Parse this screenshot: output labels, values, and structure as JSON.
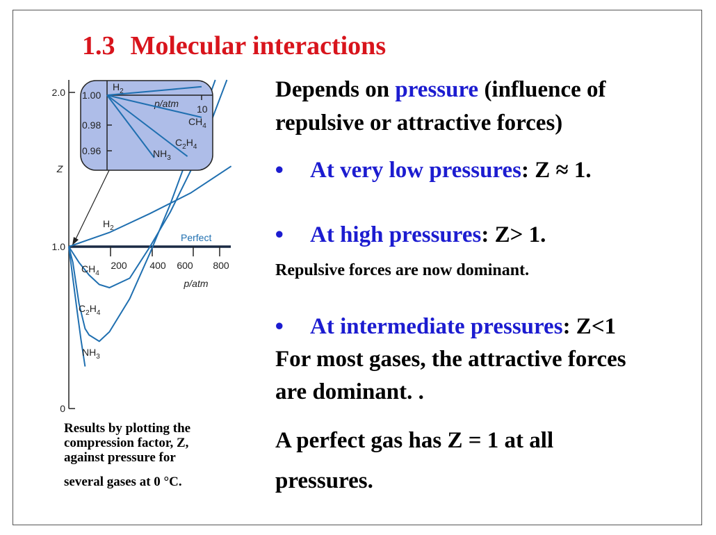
{
  "slide": {
    "title_number": "1.3",
    "title_text": "Molecular interactions"
  },
  "text": {
    "intro_a": "Depends on ",
    "intro_highlight": "pressure",
    "intro_b": " (influence of",
    "intro_line2": "repulsive or attractive forces)",
    "bullet_glyph": "•",
    "b1_highlight": "At very low pressures",
    "b1_rest": ": Z ≈ 1.",
    "b2_highlight": "At high pressures",
    "b2_rest": ": Z> 1.",
    "repulsive": "Repulsive forces are now dominant.",
    "b3_highlight": "At intermediate pressures",
    "b3_rest": ": Z<1",
    "most_line1": "For most gases, the attractive forces",
    "most_line2": "are dominant. .",
    "perfect_line1": "A perfect gas has Z = 1 at all",
    "perfect_line2": "pressures."
  },
  "caption": {
    "line1": "Results by plotting the",
    "line2": "compression factor, Z,",
    "line3": "against pressure for",
    "line4": "several gases at 0 °C."
  },
  "chart_data": [
    {
      "type": "line",
      "xlabel": "p/atm",
      "ylabel": "Z",
      "xlim": [
        0,
        830
      ],
      "ylim": [
        0,
        2.0
      ],
      "x_ticks": [
        200,
        400,
        600,
        800
      ],
      "x_tick_labels": [
        "200",
        "400",
        "600",
        "800"
      ],
      "y_ticks": [
        0,
        1.0,
        2.0
      ],
      "y_tick_labels": [
        "0",
        "1.0",
        "2.0"
      ],
      "grid": false,
      "series": [
        {
          "name": "H2",
          "label_main": "H",
          "label_sub": "2",
          "x": [
            0,
            200,
            400,
            600,
            800
          ],
          "y": [
            1.0,
            1.09,
            1.21,
            1.34,
            1.51
          ]
        },
        {
          "name": "CH4",
          "label_main": "CH",
          "label_sub": "4",
          "x": [
            0,
            50,
            100,
            150,
            200,
            300,
            400,
            500,
            600,
            700,
            800
          ],
          "y": [
            1.0,
            0.9,
            0.82,
            0.76,
            0.74,
            0.8,
            1.0,
            1.22,
            1.48,
            1.79,
            2.13
          ]
        },
        {
          "name": "C2H4",
          "label_main": "C",
          "label_sub": "2",
          "label_main2": "H",
          "label_sub2": "4",
          "x": [
            0,
            20,
            50,
            80,
            100,
            150,
            200,
            300,
            400,
            500,
            600,
            700,
            790
          ],
          "y": [
            1.0,
            0.9,
            0.64,
            0.48,
            0.44,
            0.4,
            0.46,
            0.67,
            0.96,
            1.27,
            1.62,
            1.98,
            2.3
          ]
        },
        {
          "name": "NH3",
          "label_main": "NH",
          "label_sub": "3",
          "x": [
            0,
            20,
            40,
            60,
            80
          ],
          "y": [
            1.0,
            0.8,
            0.6,
            0.41,
            0.24
          ]
        },
        {
          "name": "Perfect",
          "label_main": "Perfect",
          "label_sub": "",
          "x": [
            0,
            830
          ],
          "y": [
            1.0,
            1.0
          ]
        }
      ]
    },
    {
      "type": "line",
      "inset": true,
      "xlabel": "p/atm",
      "xlim": [
        0,
        11
      ],
      "ylim": [
        0.95,
        1.005
      ],
      "x_ticks": [
        10
      ],
      "x_tick_labels": [
        "10"
      ],
      "y_ticks": [
        0.96,
        0.98,
        1.0
      ],
      "y_tick_labels": [
        "0.96",
        "0.98",
        "1.00"
      ],
      "series": [
        {
          "name": "H2",
          "label_main": "H",
          "label_sub": "2",
          "x": [
            0,
            10
          ],
          "y": [
            1.0,
            1.0065
          ]
        },
        {
          "name": "CH4",
          "label_main": "CH",
          "label_sub": "4",
          "x": [
            0,
            10
          ],
          "y": [
            1.0,
            0.983
          ]
        },
        {
          "name": "C2H4",
          "label_main": "C",
          "label_sub": "2",
          "label_main2": "H",
          "label_sub2": "4",
          "x": [
            0,
            8.5
          ],
          "y": [
            1.0,
            0.953
          ]
        },
        {
          "name": "NH3",
          "label_main": "NH",
          "label_sub": "3",
          "x": [
            0,
            5.0
          ],
          "y": [
            1.0,
            0.952
          ]
        }
      ]
    }
  ],
  "colors": {
    "title": "#d8141c",
    "highlight": "#1c1cd0",
    "curve": "#1f6fb0",
    "inset_fill": "#aebde8",
    "axis": "#222222"
  }
}
